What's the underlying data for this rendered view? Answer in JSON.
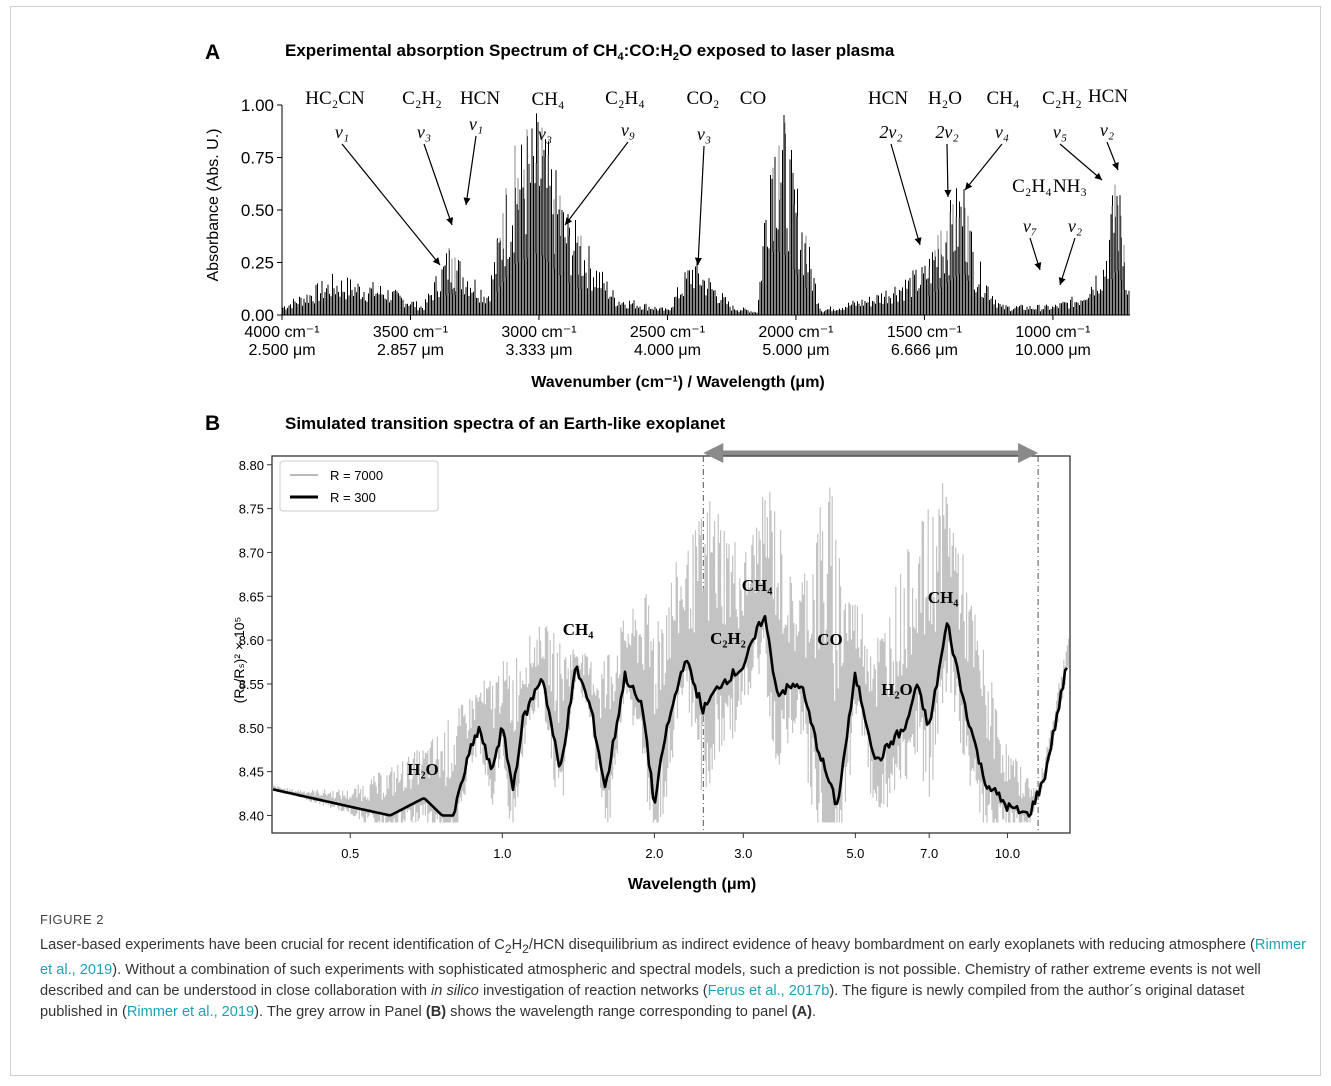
{
  "panelA": {
    "letter": "A",
    "title_pre": "Experimental absorption  Spectrum of CH",
    "title_sub1": "4",
    "title_mid": ":CO:H",
    "title_sub2": "2",
    "title_post": "O exposed to laser plasma",
    "ylabel": "Absorbance (Abs. U.)",
    "xlabel": "Wavenumber (cm⁻¹) / Wavelength (μm)",
    "yticks": [
      "0.00",
      "0.25",
      "0.50",
      "0.75",
      "1.00"
    ],
    "xticks_wn": [
      "4000 cm⁻¹",
      "3500 cm⁻¹",
      "3000 cm⁻¹",
      "2500 cm⁻¹",
      "2000 cm⁻¹",
      "1500 cm⁻¹",
      "1000 cm⁻¹"
    ],
    "xticks_wl": [
      "2.500 μm",
      "2.857 μm",
      "3.333 μm",
      "4.000 μm",
      "5.000 μm",
      "6.666 μm",
      "10.000 μm"
    ],
    "species": [
      {
        "label": "HC₂CN",
        "mode": "ν₁"
      },
      {
        "label": "C₂H₂",
        "mode": "ν₃"
      },
      {
        "label": "HCN",
        "mode": "ν₁"
      },
      {
        "label": "CH₄",
        "mode": "ν₃"
      },
      {
        "label": "C₂H₄",
        "mode": "ν₉"
      },
      {
        "label": "CO₂",
        "mode": "ν₃"
      },
      {
        "label": "CO",
        "mode": ""
      },
      {
        "label": "HCN",
        "mode": "2ν₂"
      },
      {
        "label": "H₂O",
        "mode": "2ν₂"
      },
      {
        "label": "CH₄",
        "mode": "ν₄"
      },
      {
        "label": "C₂H₂",
        "mode": "ν₅"
      },
      {
        "label": "HCN",
        "mode": "ν₂"
      },
      {
        "label": "C₂H₄",
        "mode": "ν₇"
      },
      {
        "label": "NH₃",
        "mode": "ν₂"
      }
    ]
  },
  "panelB": {
    "letter": "B",
    "title": "Simulated transition spectra of an Earth-like exoplanet",
    "ylabel": "(Rₚ/Rₛ)² × 10⁵",
    "xlabel": "Wavelength (μm)",
    "yticks": [
      "8.40",
      "8.45",
      "8.50",
      "8.55",
      "8.60",
      "8.65",
      "8.70",
      "8.75",
      "8.80"
    ],
    "xticks": [
      "0.5",
      "1.0",
      "2.0",
      "3.0",
      "5.0",
      "7.0",
      "10.0"
    ],
    "legend": [
      {
        "label": "R = 7000",
        "color": "#b9b9b9"
      },
      {
        "label": "R = 300",
        "color": "#000000"
      }
    ],
    "species": [
      "H₂O",
      "CH₄",
      "C₂H₂",
      "CH₄",
      "CO",
      "H₂O",
      "CH₄"
    ]
  },
  "chart_data": [
    {
      "type": "line",
      "title": "Experimental absorption  Spectrum of CH4:CO:H2O exposed to laser plasma",
      "xlabel": "Wavenumber (cm-1) / Wavelength (μm)",
      "ylabel": "Absorbance (Abs. U.)",
      "xlim": [
        4000,
        700
      ],
      "ylim": [
        0,
        1.0
      ],
      "series": [
        {
          "x": [
            4000,
            3800,
            3600,
            3450,
            3350,
            3200,
            3100,
            3000,
            2900,
            2700,
            2500,
            2400,
            2250,
            2150,
            2100,
            2050,
            1900,
            1700,
            1500,
            1400,
            1350,
            1300,
            1200,
            1100,
            1000,
            900,
            800,
            750,
            700
          ],
          "y": [
            0.05,
            0.2,
            0.15,
            0.05,
            0.35,
            0.12,
            0.8,
            1.0,
            0.55,
            0.1,
            0.03,
            0.3,
            0.05,
            0.02,
            1.0,
            1.0,
            0.03,
            0.1,
            0.25,
            0.55,
            0.7,
            0.3,
            0.05,
            0.05,
            0.05,
            0.1,
            0.3,
            0.75,
            0.1
          ]
        }
      ]
    },
    {
      "type": "line",
      "title": "Simulated transition spectra of an Earth-like exoplanet",
      "xlabel": "Wavelength (μm)",
      "ylabel": "(Rp/Rs)^2 × 10^5",
      "ylim": [
        8.38,
        8.81
      ],
      "xscale": "log",
      "legend": "top-left",
      "series": [
        {
          "name": "R = 300",
          "x": [
            0.35,
            0.5,
            0.6,
            0.7,
            0.76,
            0.8,
            0.86,
            0.9,
            0.95,
            1.0,
            1.05,
            1.1,
            1.2,
            1.3,
            1.4,
            1.5,
            1.6,
            1.75,
            1.9,
            2.0,
            2.1,
            2.3,
            2.5,
            2.7,
            3.0,
            3.3,
            3.5,
            3.9,
            4.2,
            4.6,
            5.0,
            5.5,
            6.0,
            6.3,
            6.6,
            7.0,
            7.6,
            8.2,
            9.0,
            10.0,
            11.0,
            11.8,
            12.5,
            13.3
          ],
          "y": [
            8.43,
            8.41,
            8.4,
            8.42,
            8.4,
            8.4,
            8.47,
            8.5,
            8.45,
            8.5,
            8.43,
            8.51,
            8.56,
            8.45,
            8.57,
            8.52,
            8.43,
            8.56,
            8.52,
            8.41,
            8.49,
            8.58,
            8.52,
            8.55,
            8.57,
            8.63,
            8.54,
            8.55,
            8.48,
            8.41,
            8.56,
            8.46,
            8.49,
            8.5,
            8.55,
            8.5,
            8.62,
            8.53,
            8.44,
            8.41,
            8.4,
            8.44,
            8.51,
            8.59
          ]
        },
        {
          "name": "R = 7000",
          "x": [
            0.35,
            0.5,
            0.7,
            0.9,
            1.2,
            1.5,
            1.9,
            2.3,
            2.6,
            3.0,
            3.4,
            3.8,
            4.4,
            5.0,
            5.6,
            6.5,
            7.6,
            8.5,
            10.0,
            11.5,
            13.3
          ],
          "y": [
            8.43,
            8.43,
            8.48,
            8.55,
            8.62,
            8.58,
            8.65,
            8.7,
            8.78,
            8.7,
            8.79,
            8.65,
            8.8,
            8.65,
            8.62,
            8.72,
            8.79,
            8.65,
            8.48,
            8.43,
            8.62
          ]
        }
      ]
    }
  ],
  "figure": {
    "label": "FIGURE 2",
    "cap1": "Laser-based experiments have been crucial for recent identification of C",
    "cap1_sub1": "2",
    "cap1_b": "H",
    "cap1_sub2": "2",
    "cap1_c": "/HCN disequilibrium as indirect evidence of heavy bombardment on early exoplanets with reducing atmosphere (",
    "link1": "Rimmer et al., 2019",
    "cap2": "). Without a combination of such experiments with sophisticated atmospheric and spectral models, such a prediction is not possible. Chemistry of rather extreme events is not well described and can be understood in close collaboration with ",
    "cap2_ital": "in silico",
    "cap2_b": " investigation of reaction networks (",
    "link2": "Ferus et al., 2017b",
    "cap3": "). The figure is newly compiled from the author´s original dataset published in (",
    "link3": "Rimmer et al., 2019",
    "cap4": "). The grey arrow in Panel ",
    "cap4_bold1": "(B)",
    "cap4_b": " shows the wavelength range corresponding to panel ",
    "cap4_bold2": "(A)",
    "cap4_c": "."
  }
}
